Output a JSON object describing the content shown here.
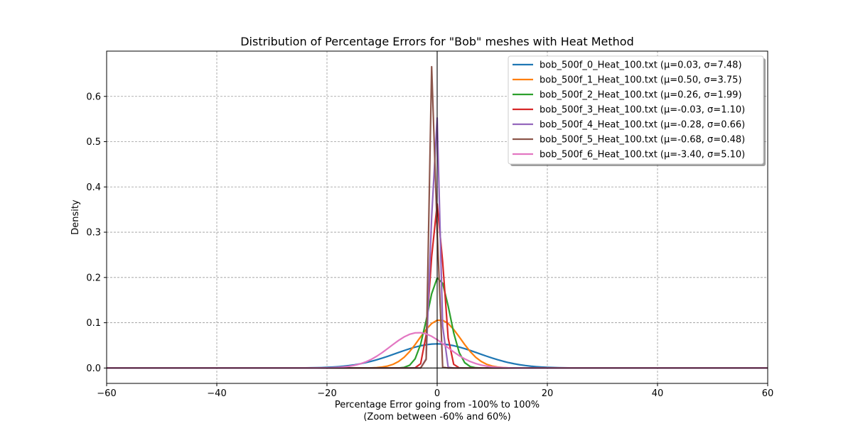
{
  "chart_data": {
    "type": "line",
    "title": "Distribution of Percentage Errors for \"Bob\" meshes with Heat Method",
    "xlabel": "Percentage Error going from -100% to 100%",
    "xlabel_line2": "(Zoom between -60% and 60%)",
    "ylabel": "Density",
    "xlim": [
      -60,
      60
    ],
    "ylim": [
      -0.034,
      0.7
    ],
    "xticks": [
      -60,
      -40,
      -20,
      0,
      20,
      40,
      60
    ],
    "xtick_labels": [
      "−60",
      "−40",
      "−20",
      "0",
      "20",
      "40",
      "60"
    ],
    "yticks": [
      0.0,
      0.1,
      0.2,
      0.3,
      0.4,
      0.5,
      0.6
    ],
    "ytick_labels": [
      "0.0",
      "0.1",
      "0.2",
      "0.3",
      "0.4",
      "0.5",
      "0.6"
    ],
    "grid": true,
    "legend_position": "top-right",
    "series": [
      {
        "name": "bob_500f_0_Heat_100.txt (μ=0.03, σ=7.48)",
        "mu": 0.03,
        "sigma": 7.48,
        "color": "#1f77b4"
      },
      {
        "name": "bob_500f_1_Heat_100.txt (μ=0.50, σ=3.75)",
        "mu": 0.5,
        "sigma": 3.75,
        "color": "#ff7f0e"
      },
      {
        "name": "bob_500f_2_Heat_100.txt (μ=0.26, σ=1.99)",
        "mu": 0.26,
        "sigma": 1.99,
        "color": "#2ca02c"
      },
      {
        "name": "bob_500f_3_Heat_100.txt (μ=-0.03, σ=1.10)",
        "mu": -0.03,
        "sigma": 1.1,
        "color": "#d62728"
      },
      {
        "name": "bob_500f_4_Heat_100.txt (μ=-0.28, σ=0.66)",
        "mu": -0.28,
        "sigma": 0.66,
        "color": "#9467bd"
      },
      {
        "name": "bob_500f_5_Heat_100.txt (μ=-0.68, σ=0.48)",
        "mu": -0.68,
        "sigma": 0.48,
        "color": "#8c564b"
      },
      {
        "name": "bob_500f_6_Heat_100.txt (μ=-3.40, σ=5.10)",
        "mu": -3.4,
        "sigma": 5.1,
        "color": "#e377c2"
      }
    ]
  }
}
